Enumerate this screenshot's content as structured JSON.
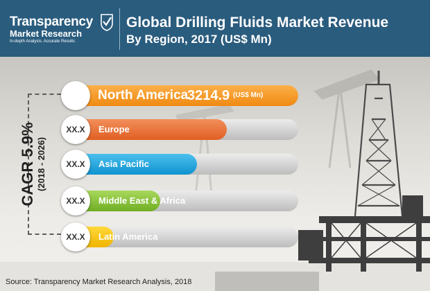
{
  "header": {
    "logo_line1": "Transparency",
    "logo_line2": "Market Research",
    "logo_tagline": "In-depth Analysis. Accurate Results",
    "title_line1": "Global Drilling Fluids Market Revenue",
    "title_line2": "By Region, 2017 (US$ Mn)",
    "background_color": "#2a5c7e"
  },
  "cagr": {
    "label": "CAGR 5.9%",
    "period": "(2018 - 2026)"
  },
  "chart_data": {
    "type": "bar",
    "orientation": "horizontal",
    "title": "Global Drilling Fluids Market Revenue By Region, 2017 (US$ Mn)",
    "categories": [
      "North America",
      "Europe",
      "Asia Pacific",
      "Middle East & Africa",
      "Latin America"
    ],
    "value_labels": [
      "3214.9",
      "XX.X",
      "XX.X",
      "XX.X",
      "XX.X"
    ],
    "unit": "(US$ Mn)",
    "relative_values": [
      1.0,
      0.69,
      0.56,
      0.4,
      0.2
    ],
    "colors": [
      "#f7941d",
      "#e8743b",
      "#1ea6e0",
      "#8dc63f",
      "#f7c600"
    ],
    "grid": false,
    "legend": "none"
  },
  "footer": {
    "source": "Source: Transparency Market Research Analysis, 2018"
  }
}
